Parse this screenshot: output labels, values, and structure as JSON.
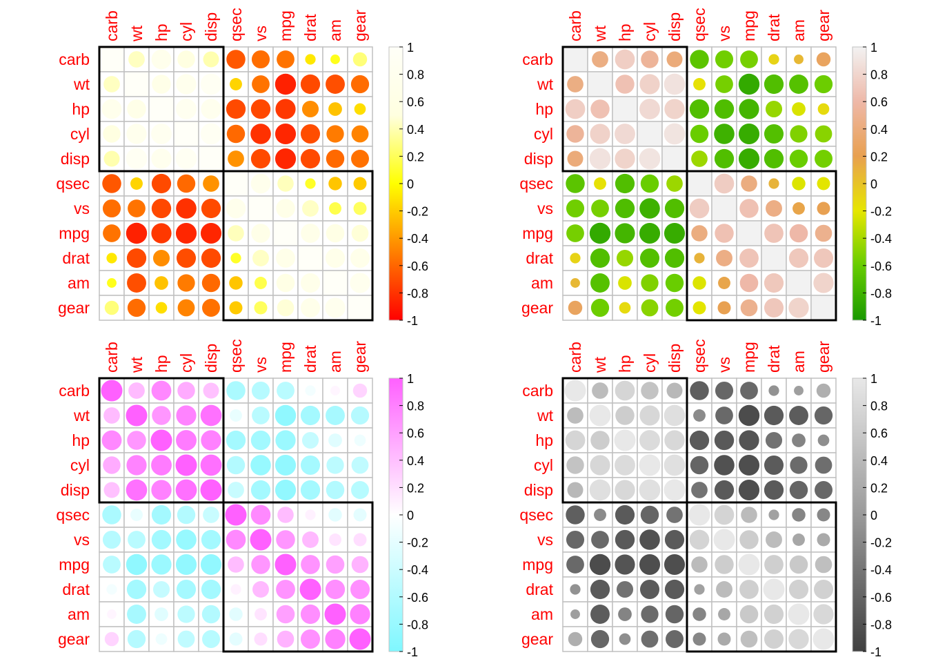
{
  "chart_data": {
    "type": "heatmap",
    "variables": [
      "carb",
      "wt",
      "hp",
      "cyl",
      "disp",
      "qsec",
      "vs",
      "mpg",
      "drat",
      "am",
      "gear"
    ],
    "matrix": [
      [
        1,
        0.43,
        0.75,
        0.53,
        0.39,
        -0.66,
        -0.57,
        -0.55,
        -0.09,
        0.06,
        0.27
      ],
      [
        0.43,
        1,
        0.66,
        0.78,
        0.89,
        -0.17,
        -0.55,
        -0.87,
        -0.71,
        -0.69,
        -0.58
      ],
      [
        0.75,
        0.66,
        1,
        0.83,
        0.79,
        -0.71,
        -0.72,
        -0.78,
        -0.45,
        -0.24,
        -0.13
      ],
      [
        0.53,
        0.78,
        0.83,
        1,
        0.9,
        -0.59,
        -0.81,
        -0.85,
        -0.7,
        -0.52,
        -0.49
      ],
      [
        0.39,
        0.89,
        0.79,
        0.9,
        1,
        -0.43,
        -0.71,
        -0.85,
        -0.71,
        -0.59,
        -0.56
      ],
      [
        -0.66,
        -0.17,
        -0.71,
        -0.59,
        -0.43,
        1,
        0.74,
        0.42,
        0.09,
        -0.23,
        -0.21
      ],
      [
        -0.57,
        -0.55,
        -0.72,
        -0.81,
        -0.71,
        0.74,
        1,
        0.66,
        0.44,
        0.17,
        0.21
      ],
      [
        -0.55,
        -0.87,
        -0.78,
        -0.85,
        -0.85,
        0.42,
        0.66,
        1,
        0.68,
        0.6,
        0.48
      ],
      [
        -0.09,
        -0.71,
        -0.45,
        -0.7,
        -0.71,
        0.09,
        0.44,
        0.68,
        1,
        0.71,
        0.7
      ],
      [
        0.06,
        -0.69,
        -0.24,
        -0.52,
        -0.59,
        -0.23,
        0.17,
        0.6,
        0.71,
        1,
        0.79
      ],
      [
        0.27,
        -0.58,
        -0.13,
        -0.49,
        -0.56,
        -0.21,
        0.21,
        0.48,
        0.7,
        0.79,
        1
      ]
    ],
    "clusters": [
      [
        "carb",
        "wt",
        "hp",
        "cyl",
        "disp"
      ],
      [
        "qsec",
        "vs",
        "mpg",
        "drat",
        "am",
        "gear"
      ]
    ],
    "color_range": [
      -1,
      1
    ],
    "colorbar_ticks": [
      "1",
      "0.8",
      "0.6",
      "0.4",
      "0.2",
      "0",
      "-0.2",
      "-0.4",
      "-0.6",
      "-0.8",
      "-1"
    ],
    "panels": [
      {
        "palette": [
          "#ff0000",
          "#ff8000",
          "#ffff00",
          "#ffffe0",
          "#fffff8"
        ]
      },
      {
        "palette": [
          "#1a9900",
          "#66cc00",
          "#e6e600",
          "#e8a050",
          "#eeb8a8",
          "#f2f2f2"
        ]
      },
      {
        "palette": [
          "#7ff7ff",
          "#ffffff",
          "#ff60ff"
        ]
      },
      {
        "palette": [
          "#404040",
          "#9a9a9a",
          "#e8e8e8"
        ]
      }
    ]
  },
  "colors": {
    "label": "#ff0000",
    "grid": "#c0c0c0",
    "cluster_box": "#000000"
  }
}
